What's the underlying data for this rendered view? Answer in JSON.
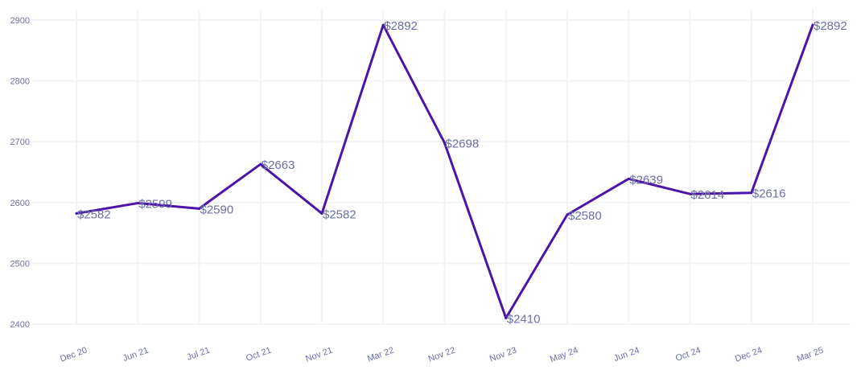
{
  "chart_data": {
    "type": "line",
    "title": "",
    "xlabel": "",
    "ylabel": "",
    "categories": [
      "Dec 20",
      "Jun 21",
      "Jul 21",
      "Oct 21",
      "Nov 21",
      "Mar 22",
      "Nov 22",
      "Nov 23",
      "May 24",
      "Jun 24",
      "Oct 24",
      "Dec 24",
      "Mar 25"
    ],
    "series": [
      {
        "values": [
          2582,
          2599,
          2590,
          2663,
          2582,
          2892,
          2698,
          2410,
          2580,
          2639,
          2614,
          2616,
          2892
        ],
        "data_labels": [
          "$2582",
          "$2599",
          "$2590",
          "$2663",
          "$2582",
          "$2892",
          "$2698",
          "$2410",
          "$2580",
          "$2639",
          "$2614",
          "$2616",
          "$2892"
        ]
      }
    ],
    "y_ticks": [
      2400,
      2500,
      2600,
      2700,
      2800,
      2900
    ],
    "ylim": [
      2400,
      2900
    ],
    "grid": true,
    "legend": "none",
    "line_color": "#4b16a8",
    "label_color": "#6b6fa8",
    "tick_color": "#6b6fa8"
  }
}
